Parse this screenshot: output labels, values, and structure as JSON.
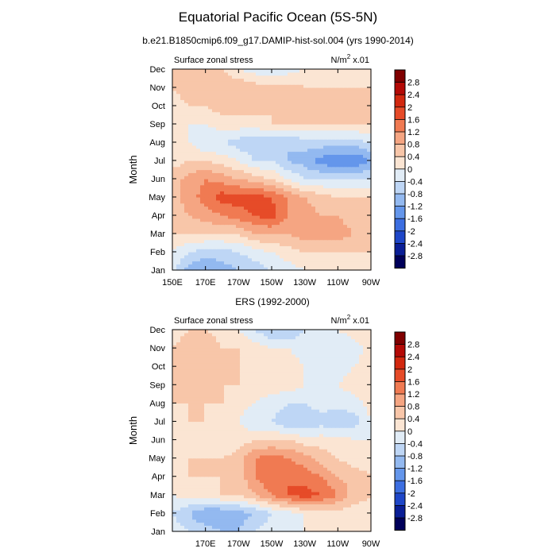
{
  "figure": {
    "title": "Equatorial Pacific Ocean (5S-5N)",
    "subtitle": "b.e21.B1850cmip6.f09_g17.DAMIP-hist-sol.004 (yrs 1990-2014)",
    "second_title": "ERS (1992-2000)"
  },
  "palette": {
    "levels": [
      "2.8",
      "2.4",
      "2",
      "1.6",
      "1.2",
      "0.8",
      "0.4",
      "0",
      "-0.4",
      "-0.8",
      "-1.2",
      "-1.6",
      "-2",
      "-2.4",
      "-2.8"
    ],
    "colors": [
      "#800000",
      "#b40a06",
      "#d2280f",
      "#e64b28",
      "#f07a52",
      "#f5a582",
      "#f8c6a9",
      "#fbe5d3",
      "#e1ecf6",
      "#bed6f5",
      "#93b9f0",
      "#6496eb",
      "#3c6ee1",
      "#1e46c8",
      "#0a1e96",
      "#00005a"
    ]
  },
  "chart_data": [
    {
      "type": "heatmap",
      "left_label": "Surface zonal stress",
      "right_label_main": "N/m",
      "right_label_sup": "2",
      "right_label_tail": " x.01",
      "ylabel": "Month",
      "xlabel": "",
      "y_ticks": [
        "Jan",
        "Feb",
        "Mar",
        "Apr",
        "May",
        "Jun",
        "Jul",
        "Aug",
        "Sep",
        "Oct",
        "Nov",
        "Dec"
      ],
      "x_ticks": [
        "150E",
        "170E",
        "170W",
        "150W",
        "130W",
        "110W",
        "90W"
      ],
      "x_tick_lon": [
        150,
        170,
        190,
        210,
        230,
        250,
        270
      ],
      "xlim": [
        150,
        270
      ],
      "x": [
        150,
        160,
        170,
        180,
        190,
        200,
        210,
        220,
        230,
        240,
        250,
        260,
        270
      ],
      "z": [
        [
          -0.2,
          -1.0,
          -1.2,
          -1.0,
          -0.8,
          -0.6,
          -0.4,
          -0.2,
          0.0,
          0.2,
          0.2,
          0.2,
          0.2
        ],
        [
          0.0,
          -0.4,
          -0.6,
          -0.6,
          -0.4,
          -0.2,
          0.0,
          0.2,
          0.4,
          0.4,
          0.4,
          0.4,
          0.4
        ],
        [
          0.4,
          0.4,
          0.4,
          0.4,
          0.4,
          0.8,
          0.8,
          0.8,
          1.0,
          1.0,
          1.0,
          0.8,
          0.8
        ],
        [
          0.6,
          0.8,
          1.0,
          1.2,
          1.4,
          1.6,
          1.8,
          1.2,
          1.0,
          0.8,
          0.8,
          0.6,
          0.6
        ],
        [
          0.6,
          1.0,
          1.4,
          1.8,
          1.8,
          1.8,
          1.6,
          1.2,
          0.8,
          0.6,
          0.4,
          0.4,
          0.4
        ],
        [
          0.6,
          1.0,
          1.2,
          1.0,
          0.8,
          0.6,
          0.4,
          0.0,
          -0.4,
          -0.4,
          -0.4,
          -0.4,
          -0.4
        ],
        [
          0.2,
          0.4,
          0.4,
          0.2,
          0.0,
          -0.4,
          -0.4,
          -0.8,
          -1.0,
          -1.4,
          -1.6,
          -1.6,
          -1.2
        ],
        [
          0.0,
          0.0,
          -0.4,
          -0.4,
          -0.6,
          -0.8,
          -0.8,
          -0.8,
          -0.6,
          -0.6,
          -0.6,
          -0.6,
          -0.4
        ],
        [
          0.0,
          0.0,
          0.0,
          0.2,
          0.2,
          0.2,
          0.4,
          0.4,
          0.4,
          0.4,
          0.4,
          0.4,
          0.4
        ],
        [
          0.2,
          0.4,
          0.4,
          0.6,
          0.6,
          0.6,
          0.4,
          0.4,
          0.4,
          0.4,
          0.4,
          0.4,
          0.4
        ],
        [
          0.4,
          0.6,
          0.8,
          0.8,
          0.8,
          0.6,
          0.6,
          0.6,
          0.4,
          0.4,
          0.4,
          0.4,
          0.4
        ],
        [
          0.4,
          0.6,
          0.6,
          0.4,
          0.0,
          -0.2,
          -0.4,
          -0.2,
          0.0,
          0.0,
          0.2,
          0.2,
          0.2
        ]
      ]
    },
    {
      "type": "heatmap",
      "left_label": "Surface zonal stress",
      "right_label_main": "N/m",
      "right_label_sup": "2",
      "right_label_tail": " x.01",
      "ylabel": "Month",
      "xlabel": "",
      "y_ticks": [
        "Jan",
        "Feb",
        "Mar",
        "Apr",
        "May",
        "Jun",
        "Jul",
        "Aug",
        "Sep",
        "Oct",
        "Nov",
        "Dec"
      ],
      "x_ticks": [
        "170E",
        "170W",
        "150W",
        "130W",
        "110W",
        "90W"
      ],
      "x_tick_lon": [
        170,
        190,
        210,
        230,
        250,
        270
      ],
      "xlim": [
        150,
        270
      ],
      "x": [
        150,
        160,
        170,
        180,
        190,
        200,
        210,
        220,
        230,
        240,
        250,
        260,
        270
      ],
      "z": [
        [
          -0.2,
          -0.4,
          -0.6,
          -0.8,
          -0.8,
          -0.4,
          -0.2,
          0.0,
          0.0,
          0.0,
          0.2,
          0.2,
          0.2
        ],
        [
          -0.4,
          -0.8,
          -1.2,
          -1.2,
          -1.0,
          -0.8,
          -0.4,
          -0.2,
          0.0,
          0.2,
          0.2,
          0.2,
          0.2
        ],
        [
          0.0,
          0.2,
          0.2,
          0.4,
          0.4,
          0.8,
          1.2,
          1.6,
          1.8,
          1.6,
          1.2,
          0.6,
          0.4
        ],
        [
          0.2,
          0.4,
          0.4,
          0.4,
          0.6,
          1.2,
          1.6,
          1.6,
          1.4,
          1.2,
          0.8,
          0.6,
          0.4
        ],
        [
          0.2,
          0.4,
          0.4,
          0.4,
          0.6,
          1.2,
          1.4,
          1.2,
          1.0,
          0.6,
          0.4,
          0.2,
          0.2
        ],
        [
          0.2,
          0.4,
          0.2,
          0.0,
          0.2,
          0.4,
          0.4,
          0.4,
          0.2,
          0.2,
          0.2,
          0.0,
          0.0
        ],
        [
          0.2,
          0.4,
          0.4,
          0.2,
          0.0,
          -0.4,
          -0.4,
          -0.8,
          -0.8,
          -0.6,
          -0.8,
          -0.6,
          0.0
        ],
        [
          0.4,
          0.4,
          0.4,
          0.4,
          0.2,
          0.0,
          -0.2,
          -0.4,
          -0.4,
          -0.2,
          -0.2,
          -0.2,
          0.2
        ],
        [
          0.4,
          0.4,
          0.4,
          0.4,
          0.4,
          0.2,
          0.2,
          0.2,
          0.0,
          0.0,
          0.0,
          0.2,
          0.2
        ],
        [
          0.4,
          0.4,
          0.4,
          0.4,
          0.4,
          0.4,
          0.2,
          0.2,
          0.0,
          -0.2,
          -0.2,
          0.0,
          0.2
        ],
        [
          0.4,
          0.6,
          0.8,
          0.4,
          0.4,
          0.2,
          0.0,
          0.0,
          -0.2,
          -0.4,
          -0.4,
          -0.2,
          0.2
        ],
        [
          0.2,
          0.4,
          0.4,
          0.2,
          0.0,
          -0.4,
          -0.8,
          -0.8,
          -0.4,
          -0.2,
          0.0,
          0.2,
          0.2
        ]
      ]
    }
  ]
}
